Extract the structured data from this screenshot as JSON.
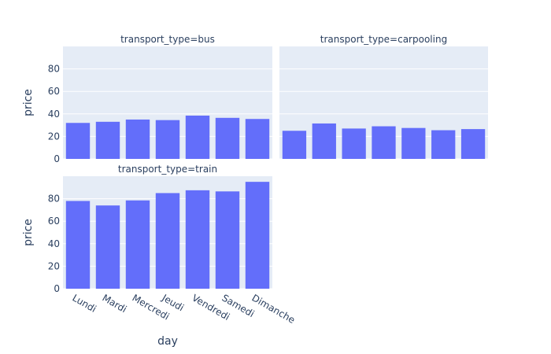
{
  "chart_data": {
    "type": "bar",
    "xlabel": "day",
    "ylabel": "price",
    "categories": [
      "Lundi",
      "Mardi",
      "Mercredi",
      "Jeudi",
      "Vendredi",
      "Samedi",
      "Dimanche"
    ],
    "ylim": [
      0,
      100
    ],
    "yticks": [
      0,
      20,
      40,
      60,
      80
    ],
    "grid": true,
    "colors": {
      "bar": "#636efa",
      "plot_bg": "#e5ecf6",
      "grid": "#ffffff",
      "text": "#2a3f5f"
    },
    "facets": [
      {
        "title": "transport_type=bus",
        "values": [
          32,
          33,
          35,
          34.5,
          38.5,
          36.5,
          35.5
        ]
      },
      {
        "title": "transport_type=carpooling",
        "values": [
          25,
          31.5,
          27,
          29,
          27.5,
          25.5,
          26.5
        ]
      },
      {
        "title": "transport_type=train",
        "values": [
          78,
          74,
          78.5,
          85,
          87.5,
          86.5,
          95
        ]
      }
    ]
  }
}
